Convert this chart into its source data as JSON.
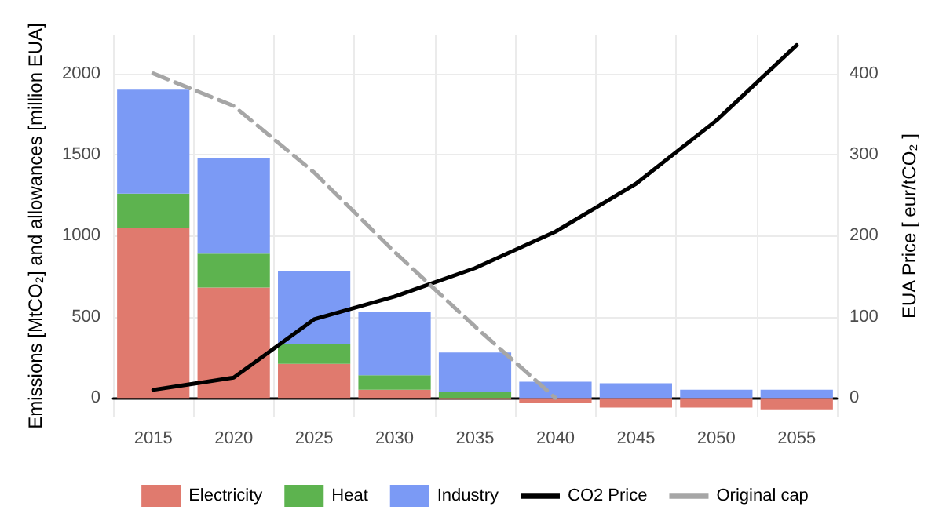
{
  "chart_data": {
    "type": "bar",
    "stacked": true,
    "xlabel": null,
    "ylabel": "Emissions [MtCO₂] and allowances [million EUA]",
    "y2label": "EUA Price [ eur/tCO₂ ]",
    "categories": [
      "2015",
      "2020",
      "2025",
      "2030",
      "2035",
      "2040",
      "2045",
      "2050",
      "2055"
    ],
    "series": [
      {
        "name": "Electricity",
        "color": "#e07a6e",
        "values": [
          1050,
          680,
          210,
          50,
          -10,
          -30,
          -60,
          -60,
          -70
        ]
      },
      {
        "name": "Heat",
        "color": "#5db34f",
        "values": [
          210,
          210,
          120,
          90,
          40,
          0,
          0,
          0,
          0
        ]
      },
      {
        "name": "Industry",
        "color": "#7b9af5",
        "values": [
          640,
          590,
          450,
          390,
          240,
          100,
          90,
          50,
          50
        ]
      },
      {
        "name": "CO2 Price",
        "type": "line",
        "axis": "y2",
        "color": "#000000",
        "line_style": "solid",
        "values": [
          10,
          25,
          97,
          125,
          160,
          205,
          264,
          342,
          435
        ]
      },
      {
        "name": "Original cap",
        "type": "line",
        "color": "#a6a6a6",
        "line_style": "dashed",
        "values": [
          2000,
          1800,
          1390,
          900,
          440,
          0,
          null,
          null,
          null
        ]
      }
    ],
    "ylim": [
      -120,
      2240
    ],
    "yticks": [
      0,
      500,
      1000,
      1500,
      2000
    ],
    "y2lim": [
      -24,
      448
    ],
    "y2ticks": [
      0,
      100,
      200,
      300,
      400
    ],
    "grid": true,
    "legend": "bottom",
    "marker": "none"
  }
}
